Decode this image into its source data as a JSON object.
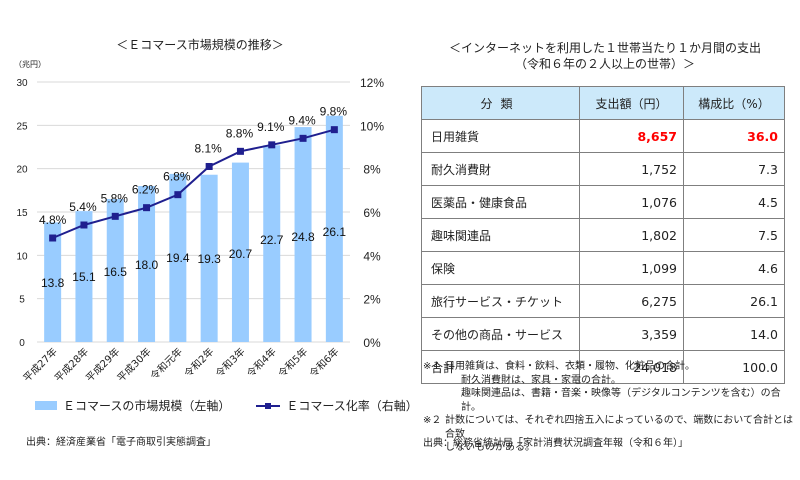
{
  "left_panel": {
    "title": "＜Ｅコマース市場規模の推移＞",
    "source": "出典：経済産業省「電子商取引実態調査」"
  },
  "chart_data": {
    "type": "bar",
    "title": "＜Ｅコマース市場規模の推移＞",
    "categories": [
      "平成27年",
      "平成28年",
      "平成29年",
      "平成30年",
      "令和元年",
      "令和2年",
      "令和3年",
      "令和4年",
      "令和5年",
      "令和6年"
    ],
    "series": [
      {
        "name": "Ｅコマースの市場規模（左軸）",
        "type": "bar",
        "axis": "left",
        "color": "#99ccff",
        "values": [
          13.8,
          15.1,
          16.5,
          18.0,
          19.4,
          19.3,
          20.7,
          22.7,
          24.8,
          26.1
        ],
        "labels": [
          "13.8",
          "15.1",
          "16.5",
          "18.0",
          "19.4",
          "19.3",
          "20.7",
          "22.7",
          "24.8",
          "26.1"
        ]
      },
      {
        "name": "Ｅコマース化率（右軸）",
        "type": "line",
        "axis": "right",
        "color": "#1f1f8f",
        "values": [
          4.8,
          5.4,
          5.8,
          6.2,
          6.8,
          8.1,
          8.8,
          9.1,
          9.4,
          9.8
        ],
        "labels": [
          "4.8%",
          "5.4%",
          "5.8%",
          "6.2%",
          "6.8%",
          "8.1%",
          "8.8%",
          "9.1%",
          "9.4%",
          "9.8%"
        ]
      }
    ],
    "y_left": {
      "label": "（兆円）",
      "min": 0,
      "max": 30,
      "ticks": [
        "0",
        "5",
        "10",
        "15",
        "20",
        "25",
        "30"
      ],
      "tick_values": [
        0,
        5,
        10,
        15,
        20,
        25,
        30
      ]
    },
    "y_right": {
      "min": 0,
      "max": 12,
      "ticks": [
        "0%",
        "2%",
        "4%",
        "6%",
        "8%",
        "10%",
        "12%"
      ],
      "tick_values": [
        0,
        2,
        4,
        6,
        8,
        10,
        12
      ]
    },
    "xlabel": "",
    "grid": true,
    "legend_position": "bottom"
  },
  "right_panel": {
    "title_line1": "＜インターネットを利用した１世帯当たり１か月間の支出",
    "title_line2": "（令和６年の２人以上の世帯）＞",
    "table": {
      "headers": [
        "分類",
        "支出額（円）",
        "構成比（%）"
      ],
      "rows": [
        {
          "category": "日用雑貨",
          "amount": "8,657",
          "share": "36.0",
          "highlight": true
        },
        {
          "category": "耐久消費財",
          "amount": "1,752",
          "share": "7.3"
        },
        {
          "category": "医薬品・健康食品",
          "amount": "1,076",
          "share": "4.5"
        },
        {
          "category": "趣味関連品",
          "amount": "1,802",
          "share": "7.5"
        },
        {
          "category": "保険",
          "amount": "1,099",
          "share": "4.6"
        },
        {
          "category": "旅行サービス・チケット",
          "amount": "6,275",
          "share": "26.1"
        },
        {
          "category": "その他の商品・サービス",
          "amount": "3,359",
          "share": "14.0"
        },
        {
          "category": "合計",
          "amount": "24,018",
          "share": "100.0"
        }
      ],
      "highlight_color": "#ff0000",
      "header_bg": "#cce9fa"
    },
    "notes": {
      "n1_mark": "※１",
      "n1_line1": "日用雑貨は、食料・飲料、衣類・履物、化粧品の合計。",
      "n1_line2": "耐久消費財は、家具・家電の合計。",
      "n1_line3": "趣味関連品は、書籍・音楽・映像等（デジタルコンテンツを含む）の合計。",
      "n2_mark": "※２",
      "n2_line1": "計数については、それぞれ四捨五入によっているので、端数において合計とは合致",
      "n2_line2": "しないものがある。"
    },
    "source": "出典：総務省統計局「家計消費状況調査年報（令和６年）」"
  }
}
